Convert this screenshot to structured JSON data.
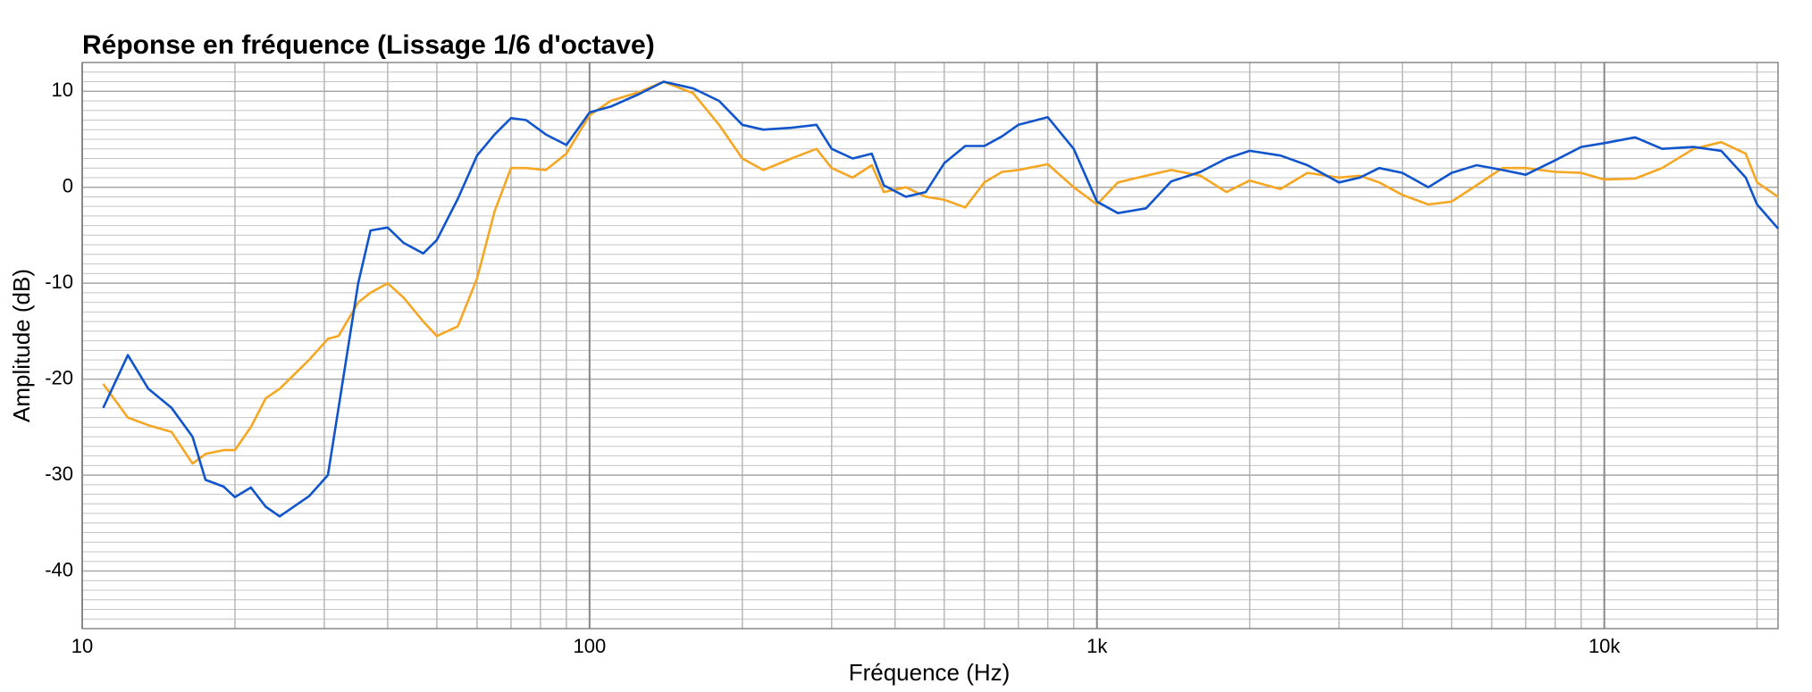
{
  "chart_data": {
    "type": "line",
    "title": "Réponse en fréquence (Lissage 1/6 d'octave)",
    "xlabel": "Fréquence (Hz)",
    "ylabel": "Amplitude (dB)",
    "xscale": "log",
    "grid": true,
    "minor_grid": true,
    "xlim": [
      10,
      22000
    ],
    "ylim": [
      -46,
      13
    ],
    "xticks": [
      10,
      100,
      {
        "value": 1000,
        "label": "1k"
      },
      {
        "value": 10000,
        "label": "10k"
      }
    ],
    "yticks": [
      -40,
      -30,
      -20,
      -10,
      0,
      10
    ],
    "x": [
      11,
      12.3,
      13.5,
      15,
      16.5,
      17.5,
      19,
      20,
      21.5,
      23,
      24.5,
      28,
      30.5,
      32,
      35,
      37,
      40,
      43,
      47,
      50,
      55,
      60,
      65,
      70,
      75,
      82,
      90,
      100,
      110,
      125,
      140,
      160,
      180,
      200,
      220,
      250,
      280,
      300,
      330,
      360,
      380,
      420,
      460,
      500,
      550,
      600,
      650,
      700,
      800,
      900,
      1000,
      1100,
      1250,
      1400,
      1600,
      1800,
      2000,
      2300,
      2600,
      3000,
      3300,
      3600,
      4000,
      4500,
      5000,
      5600,
      6300,
      7000,
      8000,
      9000,
      10000,
      11500,
      13000,
      15000,
      17000,
      19000,
      20000,
      22000
    ],
    "series": [
      {
        "color": "#f5a623",
        "values": [
          -20.5,
          -24,
          -24.8,
          -25.5,
          -28.8,
          -27.8,
          -27.4,
          -27.4,
          -25,
          -22,
          -21,
          -18,
          -15.8,
          -15.5,
          -12,
          -11,
          -10,
          -11.5,
          -14,
          -15.5,
          -14.5,
          -9.5,
          -2.5,
          2,
          2,
          1.8,
          3.5,
          7.5,
          9,
          9.9,
          11,
          9.8,
          6.5,
          3,
          1.8,
          3,
          4,
          2,
          1,
          2.3,
          -0.5,
          0,
          -1,
          -1.3,
          -2.1,
          0.5,
          1.6,
          1.8,
          2.4,
          0,
          -1.8,
          0.5,
          1.2,
          1.8,
          1.2,
          -0.5,
          0.7,
          -0.2,
          1.5,
          1,
          1.2,
          0.5,
          -0.8,
          -1.8,
          -1.5,
          0.2,
          2,
          2,
          1.6,
          1.5,
          0.8,
          0.9,
          2,
          4,
          4.7,
          3.5,
          0.5,
          -1
        ]
      },
      {
        "color": "#1155cc",
        "values": [
          -23,
          -17.5,
          -21,
          -23,
          -26,
          -30.5,
          -31.2,
          -32.3,
          -31.3,
          -33.3,
          -34.3,
          -32.2,
          -30,
          -23,
          -10,
          -4.5,
          -4.2,
          -5.8,
          -6.9,
          -5.5,
          -1.2,
          3.3,
          5.5,
          7.2,
          7,
          5.5,
          4.4,
          7.8,
          8.4,
          9.7,
          11,
          10.3,
          9,
          6.5,
          6,
          6.2,
          6.5,
          4,
          3,
          3.5,
          0.2,
          -1,
          -0.5,
          2.5,
          4.3,
          4.3,
          5.3,
          6.5,
          7.3,
          4,
          -1.5,
          -2.7,
          -2.2,
          0.6,
          1.6,
          3,
          3.8,
          3.3,
          2.3,
          0.5,
          1,
          2,
          1.5,
          0,
          1.5,
          2.3,
          1.8,
          1.3,
          2.8,
          4.2,
          4.6,
          5.2,
          4,
          4.2,
          3.8,
          1,
          -1.8,
          -4.3
        ]
      }
    ]
  }
}
